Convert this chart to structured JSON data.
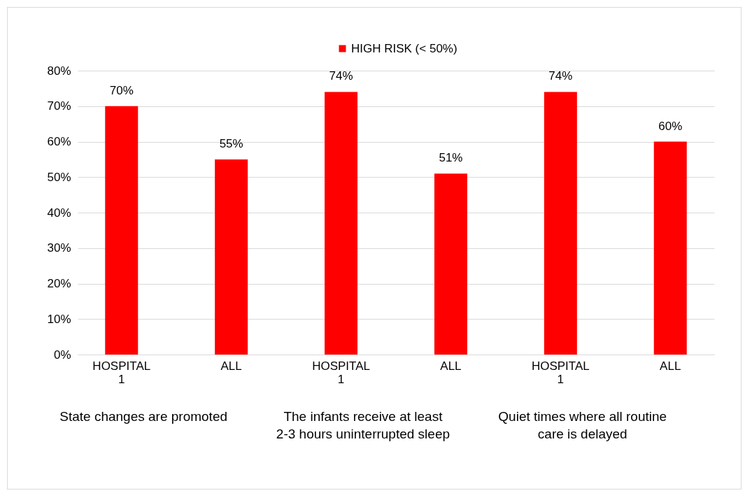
{
  "chart_data": {
    "type": "bar",
    "categories": [
      "HOSPITAL 1",
      "ALL",
      "HOSPITAL 1",
      "ALL",
      "HOSPITAL 1",
      "ALL"
    ],
    "series": [
      {
        "name": "HIGH RISK (< 50%)",
        "color": "#ff0000",
        "values": [
          70,
          55,
          74,
          51,
          74,
          60
        ],
        "value_labels": [
          "70%",
          "55%",
          "74%",
          "51%",
          "74%",
          "60%"
        ]
      }
    ],
    "ylim": [
      0,
      80
    ],
    "yticks": [
      {
        "value": 0,
        "label": "0%"
      },
      {
        "value": 10,
        "label": "10%"
      },
      {
        "value": 20,
        "label": "20%"
      },
      {
        "value": 30,
        "label": "30%"
      },
      {
        "value": 40,
        "label": "40%"
      },
      {
        "value": 50,
        "label": "50%"
      },
      {
        "value": 60,
        "label": "60%"
      },
      {
        "value": 70,
        "label": "70%"
      },
      {
        "value": 80,
        "label": "80%"
      }
    ],
    "grid": "y",
    "legend": "top",
    "annotations": [
      "State changes are promoted",
      "The infants receive at least 2-3 hours uninterrupted sleep",
      "Quiet times where all routine care is delayed"
    ]
  }
}
